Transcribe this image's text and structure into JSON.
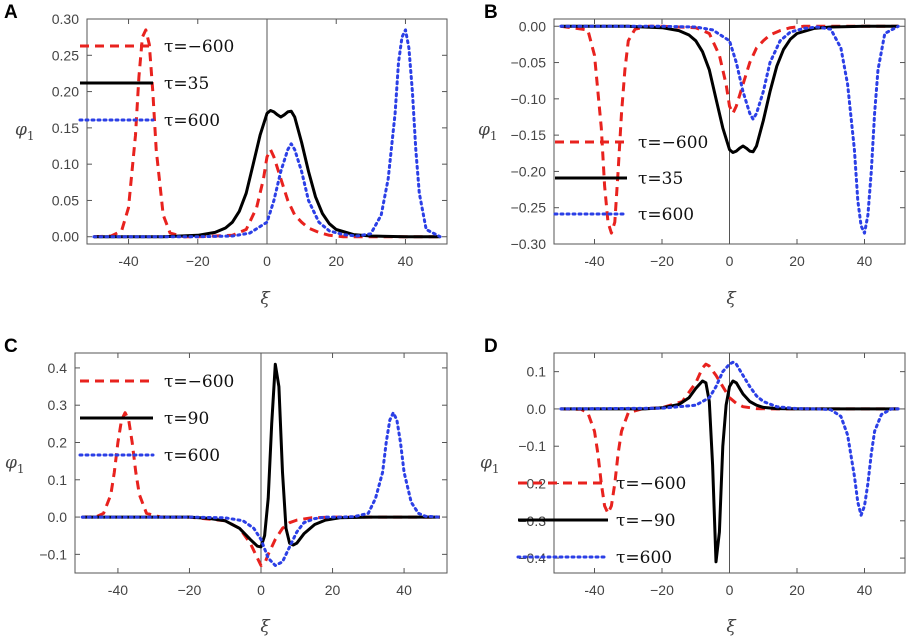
{
  "colors": {
    "red": "#e8221e",
    "black": "#000000",
    "blue": "#2b3fe6"
  },
  "chart_data": [
    {
      "panel": "A",
      "type": "line",
      "xlabel": "ξ",
      "ylabel": "φ1",
      "xlim": [
        -52,
        52
      ],
      "ylim": [
        -0.01,
        0.3
      ],
      "xticks": [
        -40,
        -20,
        0,
        20,
        40
      ],
      "xtick_labels": [
        "-40",
        "−20",
        "0",
        "20",
        "40"
      ],
      "yticks": [
        0,
        0.05,
        0.1,
        0.15,
        0.2,
        0.25,
        0.3
      ],
      "ytick_labels": [
        "0.00",
        "0.05",
        "0.10",
        "0.15",
        "0.20",
        "0.25",
        "0.30"
      ],
      "legend_position": "top-left",
      "series": [
        {
          "name": "τ=−600",
          "style": "dashed",
          "color": "red",
          "x": [
            -50,
            -45,
            -42,
            -40,
            -38,
            -37,
            -36,
            -35,
            -34,
            -33,
            -32,
            -30,
            -28,
            -24,
            -20,
            -10,
            -6,
            -3,
            -1,
            0,
            1,
            2,
            4,
            6,
            8,
            10,
            12,
            15,
            18,
            22,
            30,
            40,
            50
          ],
          "y": [
            0,
            0.001,
            0.008,
            0.04,
            0.14,
            0.22,
            0.275,
            0.285,
            0.265,
            0.2,
            0.12,
            0.03,
            0.005,
            0,
            0,
            0.002,
            0.01,
            0.04,
            0.08,
            0.11,
            0.12,
            0.11,
            0.08,
            0.05,
            0.03,
            0.02,
            0.012,
            0.006,
            0.002,
            0,
            0,
            0,
            0
          ]
        },
        {
          "name": "τ=35",
          "style": "solid",
          "color": "black",
          "x": [
            -50,
            -30,
            -20,
            -15,
            -12,
            -10,
            -8,
            -6,
            -4,
            -2,
            0,
            1,
            2,
            3,
            4,
            5,
            6,
            7,
            8,
            10,
            12,
            14,
            16,
            18,
            20,
            25,
            30,
            40,
            50
          ],
          "y": [
            0,
            0,
            0.002,
            0.006,
            0.012,
            0.02,
            0.035,
            0.06,
            0.1,
            0.14,
            0.17,
            0.174,
            0.172,
            0.168,
            0.165,
            0.168,
            0.172,
            0.173,
            0.165,
            0.13,
            0.09,
            0.055,
            0.032,
            0.018,
            0.01,
            0.003,
            0.001,
            0,
            0
          ]
        },
        {
          "name": "τ=600",
          "style": "dotted",
          "color": "blue",
          "x": [
            -50,
            -20,
            -10,
            -5,
            0,
            2,
            4,
            6,
            7,
            8,
            10,
            12,
            15,
            18,
            22,
            26,
            30,
            33,
            35,
            37,
            38,
            39,
            40,
            41,
            42,
            43,
            44,
            46,
            50
          ],
          "y": [
            0,
            0,
            0.001,
            0.005,
            0.02,
            0.05,
            0.09,
            0.12,
            0.128,
            0.12,
            0.09,
            0.05,
            0.02,
            0.008,
            0.003,
            0.001,
            0.004,
            0.03,
            0.08,
            0.17,
            0.24,
            0.275,
            0.285,
            0.26,
            0.2,
            0.12,
            0.06,
            0.01,
            0
          ]
        }
      ]
    },
    {
      "panel": "B",
      "type": "line",
      "xlabel": "ξ",
      "ylabel": "φ1",
      "xlim": [
        -52,
        52
      ],
      "ylim": [
        -0.3,
        0.01
      ],
      "xticks": [
        -40,
        -20,
        0,
        20,
        40
      ],
      "xtick_labels": [
        "-40",
        "−20",
        "0",
        "20",
        "40"
      ],
      "yticks": [
        0,
        -0.05,
        -0.1,
        -0.15,
        -0.2,
        -0.25,
        -0.3
      ],
      "ytick_labels": [
        "0.00",
        "−0.05",
        "−0.10",
        "−0.15",
        "−0.20",
        "−0.25",
        "−0.30"
      ],
      "legend_position": "bottom-left",
      "series": [
        {
          "name": "τ=−600",
          "style": "dashed",
          "color": "red",
          "x": [
            -50,
            -42,
            -40,
            -38,
            -37,
            -36,
            -35,
            -34,
            -33,
            -32,
            -31,
            -30,
            -28,
            -24,
            -20,
            -10,
            -6,
            -3,
            -1,
            0,
            1,
            2,
            4,
            6,
            8,
            10,
            12,
            15,
            18,
            22,
            30,
            40,
            50
          ],
          "y": [
            0,
            -0.005,
            -0.04,
            -0.14,
            -0.22,
            -0.27,
            -0.285,
            -0.27,
            -0.2,
            -0.12,
            -0.06,
            -0.02,
            -0.004,
            0,
            0,
            -0.002,
            -0.01,
            -0.04,
            -0.08,
            -0.11,
            -0.12,
            -0.11,
            -0.08,
            -0.05,
            -0.03,
            -0.02,
            -0.012,
            -0.006,
            -0.002,
            0,
            0,
            0,
            0
          ]
        },
        {
          "name": "τ=35",
          "style": "solid",
          "color": "black",
          "x": [
            -50,
            -30,
            -20,
            -15,
            -12,
            -10,
            -8,
            -6,
            -4,
            -2,
            0,
            1,
            2,
            3,
            4,
            5,
            6,
            7,
            8,
            10,
            12,
            14,
            16,
            18,
            20,
            25,
            30,
            40,
            50
          ],
          "y": [
            0,
            0,
            -0.002,
            -0.006,
            -0.012,
            -0.02,
            -0.035,
            -0.06,
            -0.1,
            -0.14,
            -0.17,
            -0.174,
            -0.172,
            -0.168,
            -0.165,
            -0.168,
            -0.172,
            -0.173,
            -0.165,
            -0.13,
            -0.09,
            -0.055,
            -0.032,
            -0.018,
            -0.01,
            -0.003,
            -0.001,
            0,
            0
          ]
        },
        {
          "name": "τ=600",
          "style": "dotted",
          "color": "blue",
          "x": [
            -50,
            -20,
            -10,
            -5,
            0,
            2,
            4,
            6,
            7,
            8,
            10,
            12,
            15,
            18,
            22,
            26,
            30,
            33,
            35,
            37,
            38,
            39,
            40,
            41,
            42,
            43,
            44,
            46,
            50
          ],
          "y": [
            0,
            0,
            -0.001,
            -0.005,
            -0.02,
            -0.05,
            -0.09,
            -0.12,
            -0.128,
            -0.12,
            -0.09,
            -0.05,
            -0.02,
            -0.008,
            -0.003,
            -0.001,
            -0.004,
            -0.03,
            -0.08,
            -0.17,
            -0.24,
            -0.275,
            -0.285,
            -0.26,
            -0.2,
            -0.12,
            -0.06,
            -0.01,
            0
          ]
        }
      ]
    },
    {
      "panel": "C",
      "type": "line",
      "xlabel": "ξ",
      "ylabel": "φ1",
      "xlim": [
        -52,
        52
      ],
      "ylim": [
        -0.15,
        0.44
      ],
      "xticks": [
        -40,
        -20,
        0,
        20,
        40
      ],
      "xtick_labels": [
        "-40",
        "−20",
        "0",
        "20",
        "40"
      ],
      "yticks": [
        -0.1,
        0,
        0.1,
        0.2,
        0.3,
        0.4
      ],
      "ytick_labels": [
        "−0.1",
        "0.0",
        "0.1",
        "0.2",
        "0.3",
        "0.4"
      ],
      "legend_position": "top-left",
      "series": [
        {
          "name": "τ=−600",
          "style": "dashed",
          "color": "red",
          "x": [
            -50,
            -46,
            -44,
            -42,
            -41,
            -40,
            -39,
            -38,
            -37,
            -36,
            -35,
            -34,
            -32,
            -28,
            -20,
            -10,
            -6,
            -3,
            -1,
            0,
            1,
            2,
            4,
            6,
            8,
            10,
            14,
            20,
            30,
            40,
            50
          ],
          "y": [
            0,
            0.001,
            0.01,
            0.06,
            0.12,
            0.2,
            0.26,
            0.28,
            0.26,
            0.2,
            0.12,
            0.06,
            0.01,
            0,
            0,
            -0.01,
            -0.03,
            -0.07,
            -0.11,
            -0.13,
            -0.125,
            -0.1,
            -0.06,
            -0.03,
            -0.015,
            -0.008,
            -0.002,
            0,
            0,
            0,
            0
          ]
        },
        {
          "name": "τ=90",
          "style": "solid",
          "color": "black",
          "x": [
            -50,
            -20,
            -15,
            -10,
            -6,
            -3,
            -1,
            0,
            1,
            2,
            3,
            4,
            5,
            6,
            7,
            8,
            9,
            10,
            12,
            15,
            18,
            22,
            30,
            50
          ],
          "y": [
            0,
            0,
            -0.003,
            -0.01,
            -0.03,
            -0.06,
            -0.078,
            -0.08,
            -0.05,
            0.05,
            0.25,
            0.41,
            0.35,
            0.12,
            -0.03,
            -0.07,
            -0.075,
            -0.07,
            -0.045,
            -0.02,
            -0.008,
            -0.002,
            0,
            0
          ]
        },
        {
          "name": "τ=600",
          "style": "dotted",
          "color": "blue",
          "x": [
            -50,
            -20,
            -10,
            -5,
            -2,
            0,
            2,
            4,
            6,
            7,
            8,
            10,
            12,
            15,
            18,
            22,
            26,
            30,
            32,
            34,
            35,
            36,
            37,
            38,
            39,
            40,
            42,
            44,
            46,
            50
          ],
          "y": [
            0,
            0,
            -0.002,
            -0.01,
            -0.03,
            -0.06,
            -0.11,
            -0.13,
            -0.12,
            -0.1,
            -0.08,
            -0.04,
            -0.015,
            -0.004,
            0,
            0,
            0.001,
            0.01,
            0.05,
            0.12,
            0.2,
            0.26,
            0.28,
            0.26,
            0.2,
            0.12,
            0.04,
            0.01,
            0.002,
            0
          ]
        }
      ]
    },
    {
      "panel": "D",
      "type": "line",
      "xlabel": "ξ",
      "ylabel": "φ1",
      "xlim": [
        -52,
        52
      ],
      "ylim": [
        -0.44,
        0.15
      ],
      "xticks": [
        -40,
        -20,
        0,
        20,
        40
      ],
      "xtick_labels": [
        "-40",
        "−20",
        "0",
        "20",
        "40"
      ],
      "yticks": [
        0.1,
        0,
        -0.1,
        -0.2,
        -0.3,
        -0.4
      ],
      "ytick_labels": [
        "0.1",
        "0.0",
        "−0.1",
        "−0.2",
        "−0.3",
        "−0.4"
      ],
      "legend_position": "bottom-left",
      "series": [
        {
          "name": "τ=−600",
          "style": "dashed",
          "color": "red",
          "x": [
            -50,
            -44,
            -42,
            -40,
            -39,
            -38,
            -37,
            -36,
            -35,
            -34,
            -33,
            -32,
            -30,
            -26,
            -20,
            -14,
            -10,
            -8,
            -7,
            -6,
            -4,
            -2,
            0,
            2,
            4,
            8,
            14,
            20,
            30,
            50
          ],
          "y": [
            0,
            -0.001,
            -0.01,
            -0.06,
            -0.12,
            -0.2,
            -0.26,
            -0.28,
            -0.26,
            -0.2,
            -0.12,
            -0.06,
            -0.01,
            0,
            0.003,
            0.02,
            0.07,
            0.11,
            0.12,
            0.115,
            0.09,
            0.06,
            0.03,
            0.015,
            0.006,
            0.001,
            0,
            0,
            0,
            0
          ]
        },
        {
          "name": "τ=−90",
          "style": "solid",
          "color": "black",
          "x": [
            -50,
            -25,
            -20,
            -15,
            -12,
            -10,
            -8,
            -7,
            -6,
            -5,
            -4,
            -3,
            -2,
            -1,
            0,
            1,
            2,
            3,
            4,
            6,
            8,
            10,
            14,
            20,
            50
          ],
          "y": [
            0,
            0,
            0.003,
            0.012,
            0.03,
            0.055,
            0.075,
            0.07,
            0.02,
            -0.15,
            -0.41,
            -0.33,
            -0.1,
            0.01,
            0.06,
            0.075,
            0.07,
            0.055,
            0.04,
            0.02,
            0.01,
            0.004,
            0.001,
            0,
            0
          ]
        },
        {
          "name": "τ=600",
          "style": "dotted",
          "color": "blue",
          "x": [
            -50,
            -20,
            -10,
            -6,
            -4,
            -2,
            0,
            1,
            2,
            4,
            6,
            8,
            10,
            14,
            20,
            26,
            30,
            33,
            35,
            37,
            38,
            39,
            40,
            41,
            42,
            43,
            45,
            48,
            50
          ],
          "y": [
            0,
            0.002,
            0.01,
            0.03,
            0.06,
            0.1,
            0.12,
            0.125,
            0.12,
            0.09,
            0.06,
            0.035,
            0.02,
            0.006,
            0.001,
            0,
            -0.002,
            -0.02,
            -0.07,
            -0.18,
            -0.25,
            -0.285,
            -0.26,
            -0.2,
            -0.12,
            -0.06,
            -0.015,
            0,
            0
          ]
        }
      ]
    }
  ]
}
